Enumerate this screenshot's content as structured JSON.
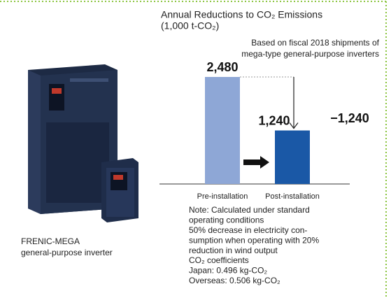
{
  "chart_data": {
    "type": "bar",
    "title": "Annual Reductions to CO₂ Emissions",
    "unit": "(1,000 t-CO₂)",
    "subtitle": [
      "Based on fiscal 2018 shipments of",
      "mega-type general-purpose inverters"
    ],
    "categories": [
      "Pre-installation",
      "Post-installation"
    ],
    "values": [
      2480,
      1240
    ],
    "value_labels": [
      "2,480",
      "1,240"
    ],
    "colors": [
      "#8ea7d6",
      "#1a58a6"
    ],
    "annotation": "−1,240",
    "notes": [
      "Note: Calculated under standard",
      "operating conditions",
      "50% decrease in electricity con-",
      "sumption when operating with 20%",
      "reduction in wind output",
      "CO₂ coefficients",
      "Japan: 0.496 kg-CO₂",
      "Overseas: 0.506 kg-CO₂"
    ]
  },
  "product": {
    "caption": [
      "FRENIC-MEGA",
      "general-purpose inverter"
    ]
  }
}
